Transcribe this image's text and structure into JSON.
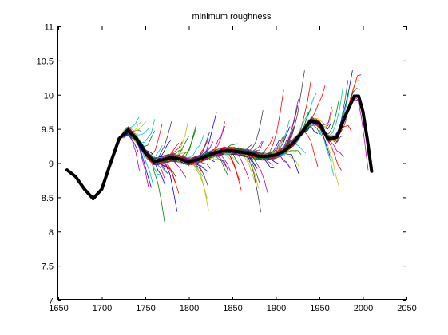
{
  "chart_data": {
    "type": "line",
    "title": "minimum roughness",
    "xlabel": "",
    "ylabel": "",
    "xlim": [
      1650,
      2050
    ],
    "ylim": [
      7,
      11
    ],
    "xticks": [
      1650,
      1700,
      1750,
      1800,
      1850,
      1900,
      1950,
      2000,
      2050
    ],
    "yticks": [
      7,
      7.5,
      8,
      8.5,
      9,
      9.5,
      10,
      10.5,
      11
    ],
    "grid": false,
    "legend": "none",
    "series_colors": [
      "#0000ff",
      "#008000",
      "#ff0000",
      "#00bfbf",
      "#bf00bf",
      "#bfbf00",
      "#404040"
    ],
    "series": [
      {
        "color": "#000000",
        "x": [
          1660,
          1670,
          1680,
          1690,
          1700,
          1710,
          1720,
          1730,
          1740,
          1750,
          1760,
          1770,
          1780,
          1790,
          1800,
          1810,
          1820,
          1830,
          1840,
          1850,
          1860,
          1870,
          1880,
          1890,
          1900,
          1910,
          1920,
          1930,
          1940,
          1950,
          1960,
          1970,
          1980,
          1990,
          1995,
          2000,
          2005,
          2010
        ],
        "values": [
          8.9,
          8.8,
          8.62,
          8.48,
          8.62,
          9.0,
          9.36,
          9.48,
          9.35,
          9.15,
          9.02,
          9.05,
          9.08,
          9.06,
          9.02,
          9.05,
          9.1,
          9.15,
          9.18,
          9.18,
          9.16,
          9.14,
          9.1,
          9.1,
          9.12,
          9.18,
          9.3,
          9.45,
          9.62,
          9.58,
          9.35,
          9.38,
          9.7,
          9.98,
          9.98,
          9.75,
          9.35,
          8.88
        ]
      }
    ]
  }
}
